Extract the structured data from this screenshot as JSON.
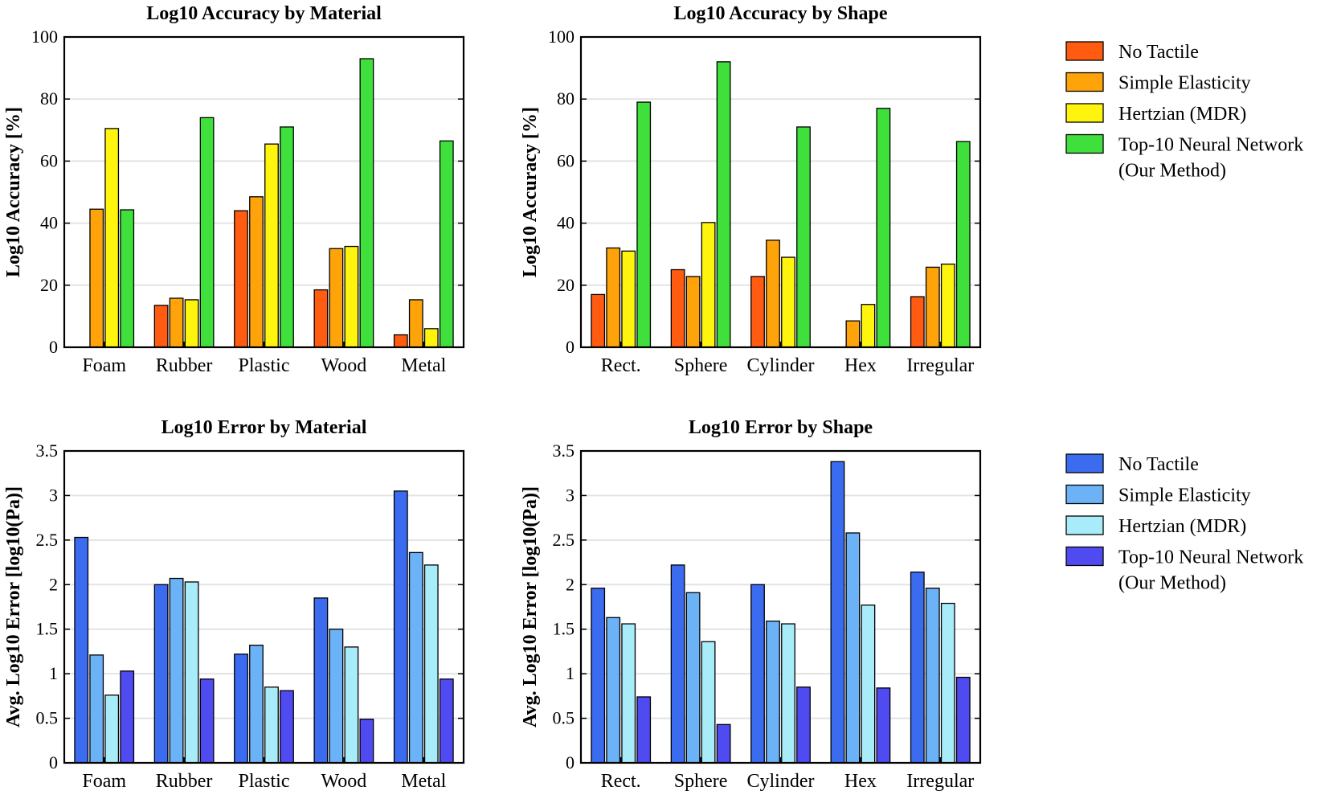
{
  "chart_data": [
    {
      "id": "acc_material",
      "type": "bar",
      "title": "Log10 Accuracy by Material",
      "xlabel": "",
      "ylabel": "Log10 Accuracy [%]",
      "ylim": [
        0,
        100
      ],
      "yticks": [
        0,
        20,
        40,
        60,
        80,
        100
      ],
      "grid": true,
      "categories": [
        "Foam",
        "Rubber",
        "Plastic",
        "Wood",
        "Metal"
      ],
      "series": [
        {
          "name": "No Tactile",
          "color": "#ff5b11",
          "values": [
            0,
            13.5,
            44,
            18.5,
            4
          ]
        },
        {
          "name": "Simple Elasticity",
          "color": "#ffa30a",
          "values": [
            44.5,
            15.8,
            48.5,
            31.8,
            15.3
          ]
        },
        {
          "name": "Hertzian (MDR)",
          "color": "#fff40d",
          "values": [
            70.5,
            15.3,
            65.5,
            32.5,
            6
          ]
        },
        {
          "name": "Top-10 Neural Network (Our Method)",
          "color": "#3fdf3c",
          "values": [
            44.3,
            74,
            71,
            93,
            66.5
          ]
        }
      ]
    },
    {
      "id": "acc_shape",
      "type": "bar",
      "title": "Log10 Accuracy by Shape",
      "xlabel": "",
      "ylabel": "Log10 Accuracy [%]",
      "ylim": [
        0,
        100
      ],
      "yticks": [
        0,
        20,
        40,
        60,
        80,
        100
      ],
      "grid": true,
      "categories": [
        "Rect.",
        "Sphere",
        "Cylinder",
        "Hex",
        "Irregular"
      ],
      "series": [
        {
          "name": "No Tactile",
          "color": "#ff5b11",
          "values": [
            17,
            25,
            22.8,
            0,
            16.3
          ]
        },
        {
          "name": "Simple Elasticity",
          "color": "#ffa30a",
          "values": [
            32,
            22.8,
            34.5,
            8.5,
            25.8
          ]
        },
        {
          "name": "Hertzian (MDR)",
          "color": "#fff40d",
          "values": [
            31,
            40.2,
            29,
            13.8,
            26.8
          ]
        },
        {
          "name": "Top-10 Neural Network (Our Method)",
          "color": "#3fdf3c",
          "values": [
            79,
            92,
            71,
            77,
            66.3
          ]
        }
      ]
    },
    {
      "id": "err_material",
      "type": "bar",
      "title": "Log10 Error by Material",
      "xlabel": "",
      "ylabel": "Avg. Log10 Error [log10(Pa)]",
      "ylim": [
        0,
        3.5
      ],
      "yticks": [
        0,
        0.5,
        1,
        1.5,
        2,
        2.5,
        3,
        3.5
      ],
      "grid": true,
      "categories": [
        "Foam",
        "Rubber",
        "Plastic",
        "Wood",
        "Metal"
      ],
      "series": [
        {
          "name": "No Tactile",
          "color": "#3b6cf0",
          "values": [
            2.53,
            2.0,
            1.22,
            1.85,
            3.05
          ]
        },
        {
          "name": "Simple Elasticity",
          "color": "#6cb2f7",
          "values": [
            1.21,
            2.07,
            1.32,
            1.5,
            2.36
          ]
        },
        {
          "name": "Hertzian (MDR)",
          "color": "#a9ecf9",
          "values": [
            0.76,
            2.03,
            0.85,
            1.3,
            2.22
          ]
        },
        {
          "name": "Top-10 Neural Network (Our Method)",
          "color": "#4f4bf0",
          "values": [
            1.03,
            0.94,
            0.81,
            0.49,
            0.94
          ]
        }
      ]
    },
    {
      "id": "err_shape",
      "type": "bar",
      "title": "Log10 Error by Shape",
      "xlabel": "",
      "ylabel": "Avg. Log10 Error [log10(Pa)]",
      "ylim": [
        0,
        3.5
      ],
      "yticks": [
        0,
        0.5,
        1,
        1.5,
        2,
        2.5,
        3,
        3.5
      ],
      "grid": true,
      "categories": [
        "Rect.",
        "Sphere",
        "Cylinder",
        "Hex",
        "Irregular"
      ],
      "series": [
        {
          "name": "No Tactile",
          "color": "#3b6cf0",
          "values": [
            1.96,
            2.22,
            2.0,
            3.38,
            2.14
          ]
        },
        {
          "name": "Simple Elasticity",
          "color": "#6cb2f7",
          "values": [
            1.63,
            1.91,
            1.59,
            2.58,
            1.96
          ]
        },
        {
          "name": "Hertzian (MDR)",
          "color": "#a9ecf9",
          "values": [
            1.56,
            1.36,
            1.56,
            1.77,
            1.79
          ]
        },
        {
          "name": "Top-10 Neural Network (Our Method)",
          "color": "#4f4bf0",
          "values": [
            0.74,
            0.43,
            0.85,
            0.84,
            0.96
          ]
        }
      ]
    }
  ],
  "legends": [
    {
      "id": "accuracy_legend",
      "entries": [
        {
          "line1": "No Tactile",
          "line2": "",
          "color": "#ff5b11"
        },
        {
          "line1": "Simple Elasticity",
          "line2": "",
          "color": "#ffa30a"
        },
        {
          "line1": "Hertzian (MDR)",
          "line2": "",
          "color": "#fff40d"
        },
        {
          "line1": "Top-10 Neural Network",
          "line2": "(Our Method)",
          "color": "#3fdf3c"
        }
      ]
    },
    {
      "id": "error_legend",
      "entries": [
        {
          "line1": "No Tactile",
          "line2": "",
          "color": "#3b6cf0"
        },
        {
          "line1": "Simple Elasticity",
          "line2": "",
          "color": "#6cb2f7"
        },
        {
          "line1": "Hertzian (MDR)",
          "line2": "",
          "color": "#a9ecf9"
        },
        {
          "line1": "Top-10 Neural Network",
          "line2": "(Our Method)",
          "color": "#4f4bf0"
        }
      ]
    }
  ]
}
